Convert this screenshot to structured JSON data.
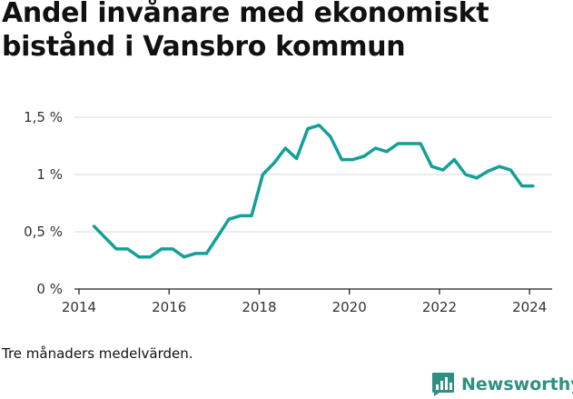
{
  "page": {
    "title": "Andel invånare med ekonomiskt bistånd i Vansbro kommun",
    "footnote": "Tre månaders medelvärden.",
    "brand": "Newsworthy",
    "brand_icon": "bar-chart-speech-icon",
    "colors": {
      "line": "#13a096",
      "grid": "#d9d9d9",
      "brand": "#2f8f83"
    }
  },
  "chart_data": {
    "type": "line",
    "title": "Andel invånare med ekonomiskt bistånd i Vansbro kommun",
    "xlabel": "",
    "ylabel": "",
    "xlim": [
      2013.9,
      2024.5
    ],
    "ylim": [
      0,
      1.5
    ],
    "x_ticks": [
      2014,
      2016,
      2018,
      2020,
      2022,
      2024
    ],
    "y_ticks": [
      {
        "value": 0,
        "label": "0 %"
      },
      {
        "value": 0.5,
        "label": "0,5 %"
      },
      {
        "value": 1,
        "label": "1 %"
      },
      {
        "value": 1.5,
        "label": "1,5 %"
      }
    ],
    "grid": "horizontal",
    "series": [
      {
        "color": "#13a096",
        "x": [
          2014.33,
          2014.58,
          2014.83,
          2015.08,
          2015.33,
          2015.58,
          2015.83,
          2016.08,
          2016.33,
          2016.58,
          2016.83,
          2017.08,
          2017.33,
          2017.58,
          2017.83,
          2018.08,
          2018.33,
          2018.58,
          2018.83,
          2019.08,
          2019.33,
          2019.58,
          2019.83,
          2020.08,
          2020.33,
          2020.58,
          2020.83,
          2021.08,
          2021.33,
          2021.58,
          2021.83,
          2022.08,
          2022.33,
          2022.58,
          2022.83,
          2023.08,
          2023.33,
          2023.58,
          2023.83,
          2024.08
        ],
        "y": [
          0.55,
          0.45,
          0.35,
          0.35,
          0.28,
          0.28,
          0.35,
          0.35,
          0.28,
          0.31,
          0.31,
          0.46,
          0.61,
          0.64,
          0.64,
          1.0,
          1.1,
          1.23,
          1.14,
          1.4,
          1.43,
          1.33,
          1.13,
          1.13,
          1.16,
          1.23,
          1.2,
          1.27,
          1.27,
          1.27,
          1.07,
          1.04,
          1.13,
          1.0,
          0.97,
          1.03,
          1.07,
          1.04,
          0.9,
          0.9
        ]
      }
    ]
  }
}
